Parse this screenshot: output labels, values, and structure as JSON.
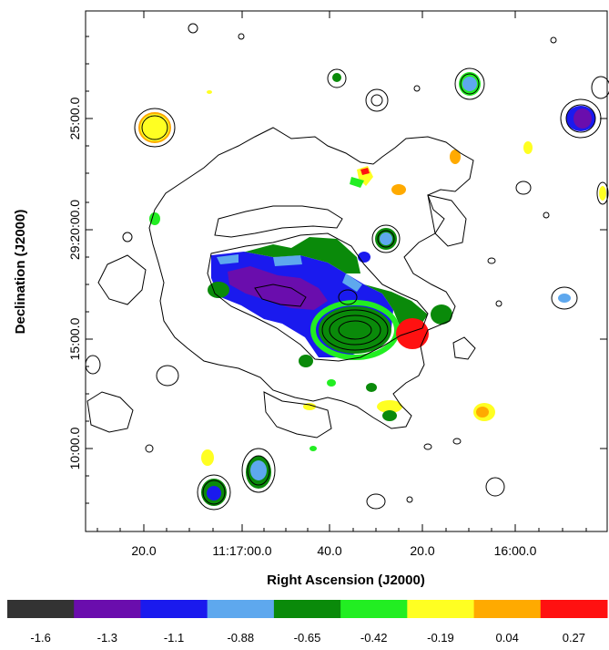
{
  "chart_data": {
    "type": "heatmap",
    "title": "",
    "xlabel": "Right Ascension (J2000)",
    "ylabel": "Declination (J2000)",
    "x_tick_labels": [
      "20.0",
      "11:17:00.0",
      "40.0",
      "20.0",
      "16:00.0"
    ],
    "y_tick_labels": [
      "25:00.0",
      "29:20:00.0",
      "15:00.0",
      "10:00.0"
    ],
    "colorbar": {
      "colors": [
        "#333333",
        "#6a0dad",
        "#1a1aee",
        "#5ea8ee",
        "#0a8a0a",
        "#22ee22",
        "#ffff22",
        "#ffaa00",
        "#ff1111"
      ],
      "tick_labels": [
        "-1.6",
        "-1.3",
        "-1.1",
        "-0.88",
        "-0.65",
        "-0.42",
        "-0.19",
        "0.04",
        "0.27"
      ]
    },
    "grid": false
  }
}
